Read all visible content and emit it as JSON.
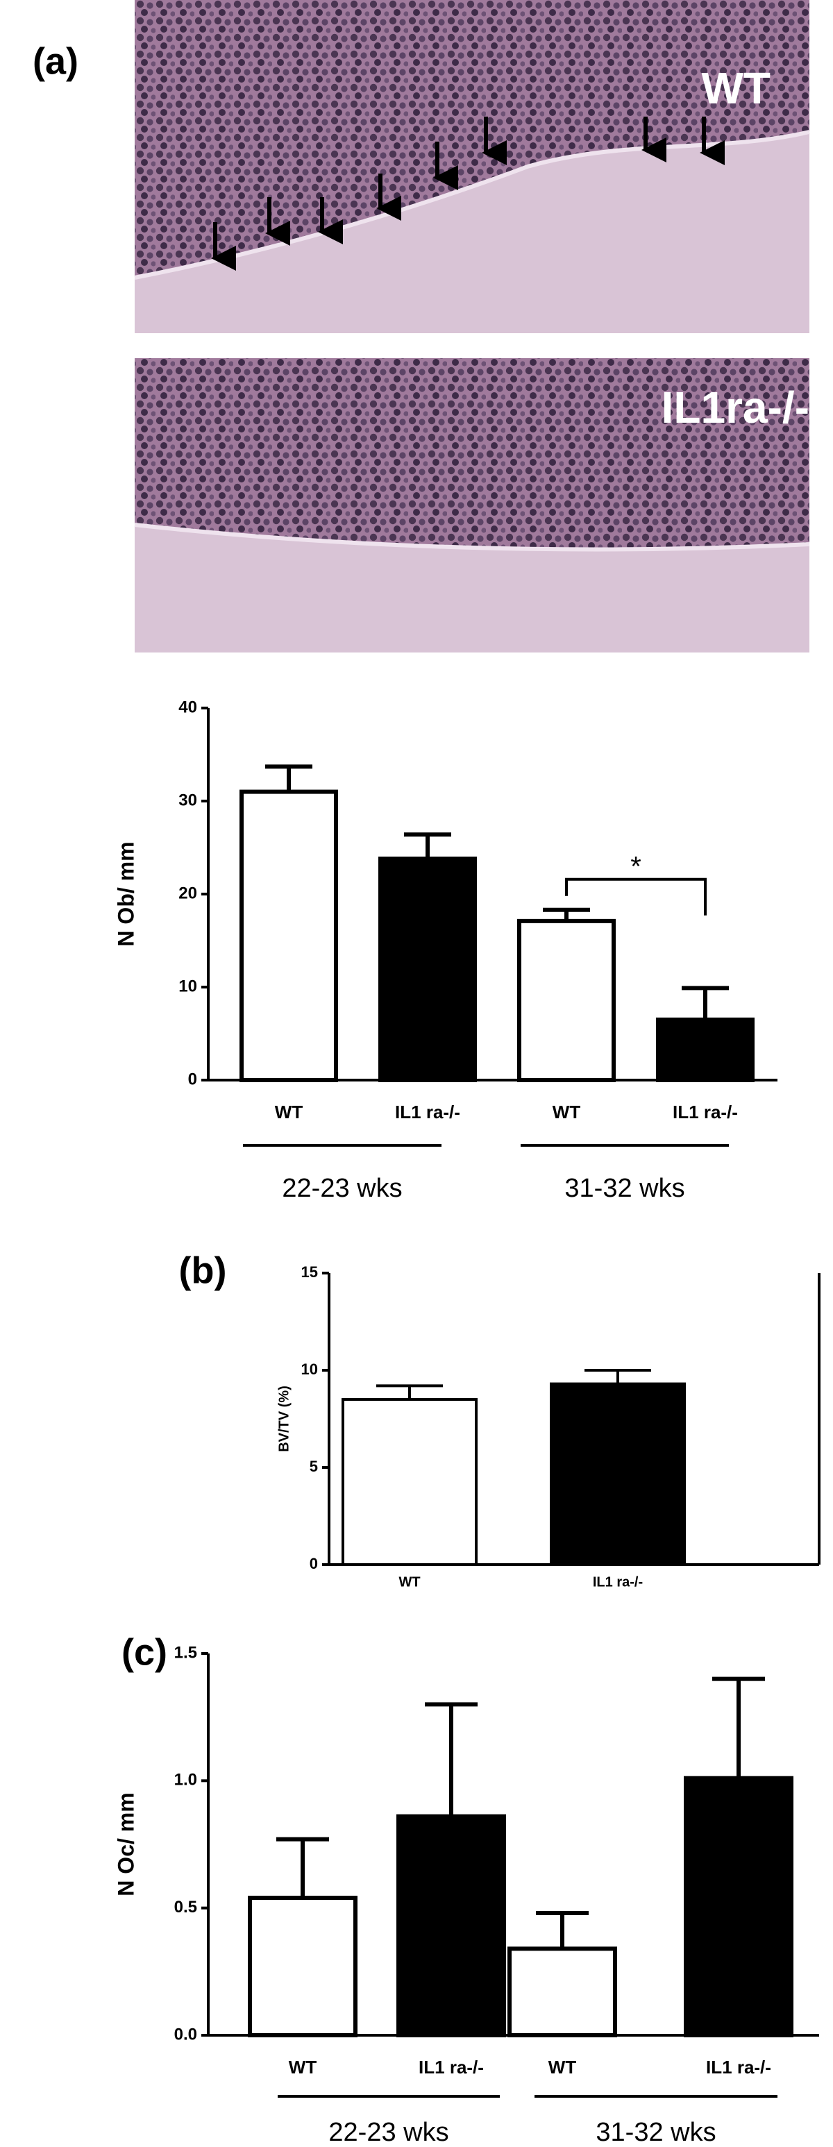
{
  "panel_labels": [
    "(a)",
    "(b)",
    "(c)"
  ],
  "micrographs": [
    {
      "label": "WT"
    },
    {
      "label": "IL1ra-/-"
    }
  ],
  "chart_data": [
    {
      "type": "bar",
      "ylabel": "N Ob/ mm",
      "categories": [
        "WT",
        "IL1 ra-/-",
        "WT",
        "IL1 ra-/-"
      ],
      "values": [
        31,
        23.8,
        17.1,
        6.5
      ],
      "errors": [
        2.7,
        2.6,
        1.2,
        3.4
      ],
      "colors": [
        "#ffffff",
        "#000000",
        "#ffffff",
        "#000000"
      ],
      "group_labels": [
        "22-23 wks",
        "31-32 wks"
      ],
      "annotations": [
        "*"
      ],
      "ylim": [
        0,
        40
      ],
      "yticks": [
        0,
        10,
        20,
        30,
        40
      ]
    },
    {
      "type": "bar",
      "ylabel": "BV/TV (%)",
      "categories": [
        "WT",
        "IL1 ra-/-"
      ],
      "values": [
        8.5,
        9.3
      ],
      "errors": [
        0.7,
        0.7
      ],
      "colors": [
        "#ffffff",
        "#000000"
      ],
      "ylim": [
        0,
        15
      ],
      "yticks": [
        0,
        5,
        10,
        15
      ]
    },
    {
      "type": "bar",
      "ylabel": "N Oc/ mm",
      "categories": [
        "WT",
        "IL1 ra-/-",
        "WT",
        "IL1 ra-/-"
      ],
      "values": [
        0.54,
        0.86,
        0.34,
        1.01
      ],
      "errors": [
        0.23,
        0.44,
        0.14,
        0.39
      ],
      "colors": [
        "#ffffff",
        "#000000",
        "#ffffff",
        "#000000"
      ],
      "group_labels": [
        "22-23 wks",
        "31-32 wks"
      ],
      "ylim": [
        0,
        1.5
      ],
      "yticks": [
        {
          "value": 0,
          "label": "0.0"
        },
        0.5,
        {
          "value": 1,
          "label": "1.0"
        },
        1.5
      ]
    }
  ]
}
